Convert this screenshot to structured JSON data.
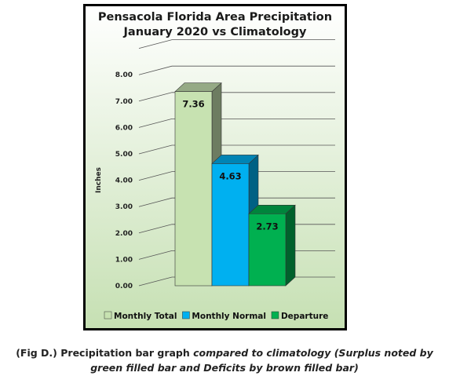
{
  "chart_data": {
    "type": "bar",
    "title": [
      "Pensacola Florida Area Precipitation",
      "January 2020 vs Climatology"
    ],
    "ylabel": "Inches",
    "xlabel": "",
    "ylim": [
      0,
      8
    ],
    "yticks": [
      "0.00",
      "1.00",
      "2.00",
      "3.00",
      "4.00",
      "5.00",
      "6.00",
      "7.00",
      "8.00"
    ],
    "grid": true,
    "legend_position": "bottom",
    "categories": [
      "Monthly Total",
      "Monthly Normal",
      "Departure"
    ],
    "values": [
      7.36,
      4.63,
      2.73
    ],
    "labels": [
      "7.36",
      "4.63",
      "2.73"
    ],
    "colors": [
      "#c7e2b1",
      "#00b0f0",
      "#00b050"
    ]
  },
  "caption": {
    "prefix": "(Fig D.) Precipitation bar graph ",
    "italic_line1": "compared to climatology (Surplus noted by",
    "italic_line2": "green filled bar and Deficits by brown filled bar)"
  }
}
